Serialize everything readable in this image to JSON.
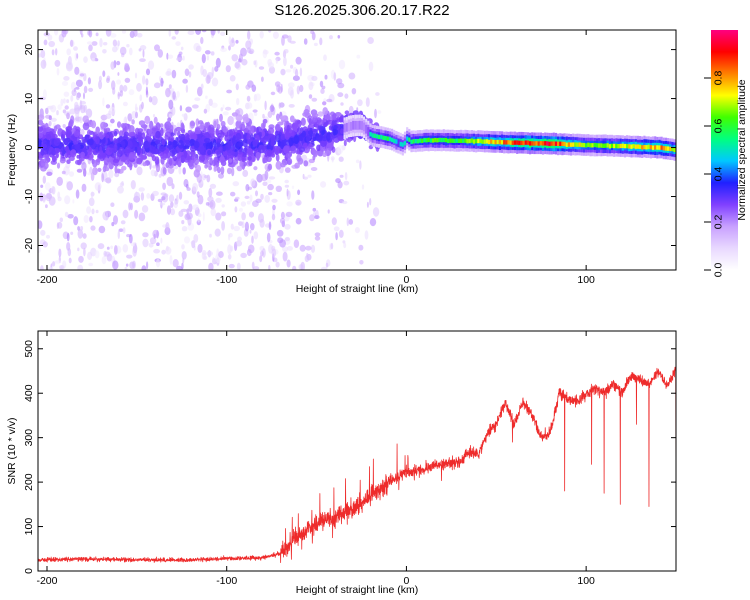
{
  "title": "S126.2025.306.20.17.R22",
  "chart_data": [
    {
      "type": "heatmap",
      "name": "spectrogram",
      "xlabel": "Height of straight line (km)",
      "ylabel": "Frequency (Hz)",
      "xlim": [
        -205,
        150
      ],
      "ylim": [
        -25,
        24
      ],
      "xticks": [
        -200,
        -100,
        0,
        100
      ],
      "yticks": [
        20,
        10,
        0,
        -10,
        -20
      ],
      "colorbar": {
        "label": "Normalized spectral amplitude",
        "range": [
          0,
          1
        ],
        "ticks": [
          "0.0",
          "0.2",
          "0.4",
          "0.6",
          "0.8"
        ],
        "colors": [
          "#ffffff",
          "#e8d8ff",
          "#c8a0ff",
          "#8040ff",
          "#2020ff",
          "#00c8ff",
          "#00ff80",
          "#40ff00",
          "#ffff00",
          "#ff8000",
          "#ff0000",
          "#ff0080"
        ]
      },
      "ridge": {
        "description": "dominant frequency track versus height",
        "x": [
          -205,
          -150,
          -100,
          -60,
          -30,
          -25,
          -20,
          -10,
          -2,
          0,
          2,
          10,
          30,
          60,
          80,
          100,
          120,
          140,
          150
        ],
        "y": [
          0.5,
          0.5,
          0.3,
          1.5,
          4.5,
          4.5,
          2.5,
          1.8,
          0.5,
          2.0,
          1.2,
          1.5,
          1.4,
          1.0,
          0.8,
          0.5,
          0.3,
          0.0,
          -0.5
        ],
        "amplitude": [
          0.22,
          0.22,
          0.22,
          0.25,
          0.35,
          0.35,
          0.5,
          0.55,
          0.45,
          0.5,
          0.55,
          0.6,
          0.6,
          0.85,
          0.9,
          0.65,
          0.7,
          0.8,
          0.7
        ]
      }
    },
    {
      "type": "line",
      "name": "snr",
      "xlabel": "Height of straight line (km)",
      "ylabel": "SNR (10 * v/v)",
      "xlim": [
        -205,
        150
      ],
      "ylim": [
        0,
        540
      ],
      "xticks": [
        -200,
        -100,
        0,
        100
      ],
      "yticks": [
        500,
        400,
        300,
        200,
        100,
        0
      ],
      "color": "#ee2b2b",
      "series": [
        {
          "name": "SNR trend",
          "x": [
            -205,
            -180,
            -150,
            -120,
            -100,
            -80,
            -70,
            -60,
            -50,
            -40,
            -30,
            -20,
            -10,
            0,
            10,
            20,
            30,
            35,
            40,
            45,
            50,
            55,
            60,
            65,
            70,
            75,
            80,
            85,
            90,
            95,
            100,
            105,
            110,
            115,
            120,
            125,
            130,
            135,
            140,
            145,
            150
          ],
          "y": [
            25,
            27,
            25,
            25,
            28,
            30,
            40,
            80,
            110,
            120,
            140,
            170,
            200,
            220,
            230,
            240,
            245,
            270,
            260,
            310,
            330,
            380,
            330,
            380,
            350,
            300,
            310,
            400,
            390,
            380,
            400,
            410,
            400,
            420,
            400,
            440,
            430,
            420,
            450,
            420,
            450
          ]
        }
      ],
      "dips": [
        {
          "x": 59,
          "y": 290
        },
        {
          "x": 88,
          "y": 180
        },
        {
          "x": 103,
          "y": 240
        },
        {
          "x": 110,
          "y": 175
        },
        {
          "x": 119,
          "y": 150
        },
        {
          "x": 128,
          "y": 330
        },
        {
          "x": 135,
          "y": 145
        },
        {
          "x": 150,
          "y": 225
        }
      ]
    }
  ]
}
